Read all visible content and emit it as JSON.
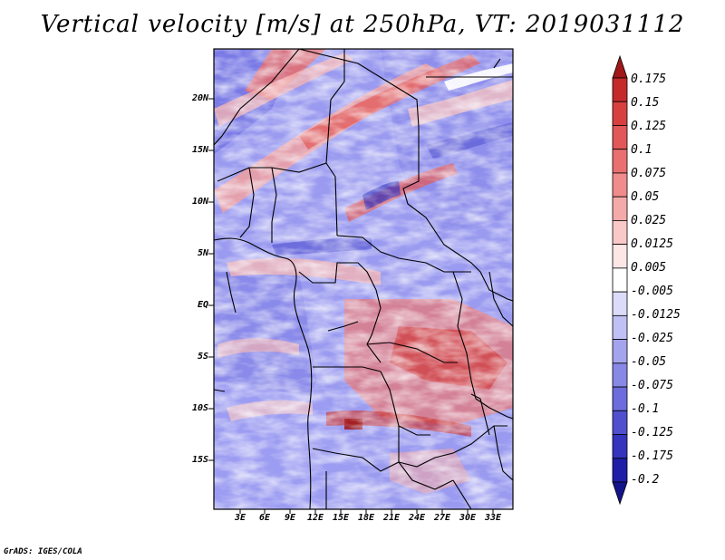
{
  "title": "Vertical velocity [m/s] at 250hPa, VT: 2019031112",
  "footer": "GrADS: IGES/COLA",
  "y_axis_labels": [
    "20N",
    "15N",
    "10N",
    "5N",
    "EQ",
    "5S",
    "10S",
    "15S"
  ],
  "x_axis_labels": [
    "3E",
    "6E",
    "9E",
    "12E",
    "15E",
    "18E",
    "21E",
    "24E",
    "27E",
    "30E",
    "33E"
  ],
  "colorbar": {
    "levels": [
      "0.175",
      "0.15",
      "0.125",
      "0.1",
      "0.075",
      "0.05",
      "0.025",
      "0.0125",
      "0.005",
      "-0.005",
      "-0.0125",
      "-0.025",
      "-0.05",
      "-0.075",
      "-0.1",
      "-0.125",
      "-0.175",
      "-0.2"
    ],
    "colors": [
      "#a01818",
      "#c42a2a",
      "#d84040",
      "#e25858",
      "#ea7070",
      "#f08c8c",
      "#f5aaaa",
      "#f9c8c8",
      "#fde6e6",
      "#ffffff",
      "#dcdcfa",
      "#c0c0f5",
      "#a4a4ee",
      "#8888e6",
      "#6c6cdc",
      "#5050cf",
      "#3434bd",
      "#1e1ea6",
      "#14148a"
    ]
  }
}
